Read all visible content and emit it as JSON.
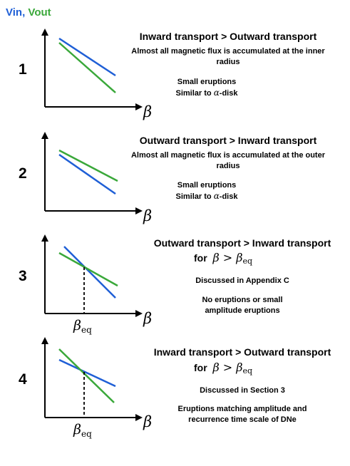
{
  "legend": {
    "vin": "Vin",
    "sep": ",",
    "vout": "Vout",
    "colors": {
      "vin": "#1f5fd6",
      "vout": "#3aa83a"
    }
  },
  "panels": [
    {
      "number": "1",
      "title": "Inward transport > Outward transport",
      "line1": "Almost all magnetic flux is accumulated at the inner",
      "line2": "radius",
      "note1": "Small eruptions",
      "note2_pre": "Similar to ",
      "note2_alpha": "α",
      "note2_post": "-disk",
      "xaxis": "β"
    },
    {
      "number": "2",
      "title": "Outward transport > Inward transport",
      "line1": "Almost all magnetic flux is accumulated at the outer",
      "line2": "radius",
      "note1": "Small eruptions",
      "note2_pre": "Similar to ",
      "note2_alpha": "α",
      "note2_post": "-disk",
      "xaxis": "β"
    },
    {
      "number": "3",
      "title": "Outward transport > Inward transport",
      "for": "for",
      "cond_beta": "β",
      "cond_op": " > ",
      "cond_beta2": "β",
      "cond_sub": "eq",
      "ref": "Discussed in Appendix C",
      "note1": "No eruptions or small",
      "note2": "amplitude eruptions",
      "xaxis": "β",
      "eq_beta": "β",
      "eq_sub": "eq"
    },
    {
      "number": "4",
      "title": "Inward transport > Outward transport",
      "for": "for",
      "cond_beta": "β",
      "cond_op": " > ",
      "cond_beta2": "β",
      "cond_sub": "eq",
      "ref": "Discussed in Section 3",
      "note1": "Eruptions matching amplitude and",
      "note2": "recurrence time scale of DNe",
      "xaxis": "β",
      "eq_beta": "β",
      "eq_sub": "eq"
    }
  ]
}
